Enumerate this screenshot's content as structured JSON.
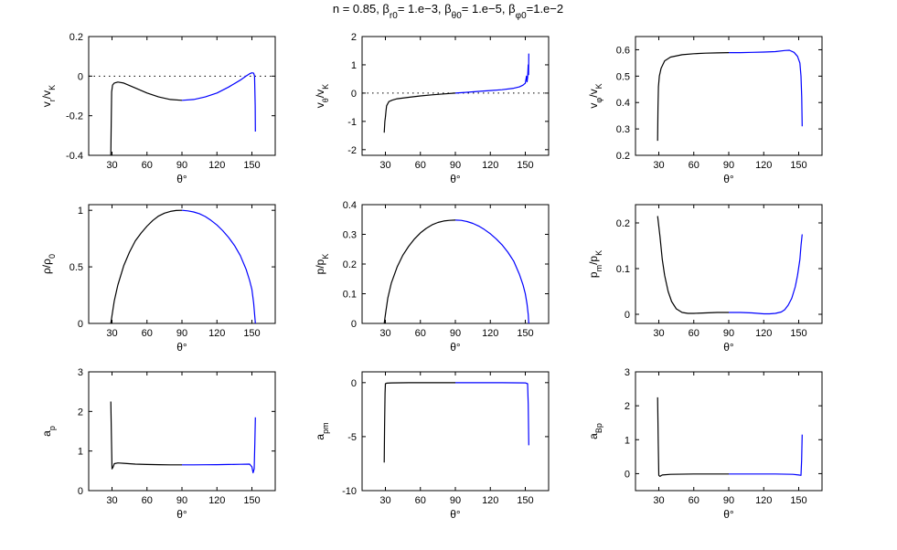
{
  "figure": {
    "title": "n = 0.85, β_r0= 1.e−3, β_θ0= 1.e−5, β_φ0=1.e−2",
    "colors": {
      "left_half": "#000000",
      "right_half": "#0000ff",
      "reference_line": "#000000"
    }
  },
  "chart_data": [
    {
      "type": "line",
      "ylabel": "v_r/v_K",
      "xlabel": "θ°",
      "xlim": [
        10,
        170
      ],
      "xticks": [
        30,
        60,
        90,
        120,
        150
      ],
      "ylim": [
        -0.4,
        0.2
      ],
      "yticks": [
        -0.4,
        -0.2,
        0,
        0.2
      ],
      "reference_line": 0,
      "series": [
        {
          "color": "#000000",
          "x": [
            29,
            29.3,
            29.7,
            30.5,
            32,
            35,
            40,
            50,
            60,
            70,
            80,
            90
          ],
          "y": [
            -0.4,
            -0.25,
            -0.08,
            -0.045,
            -0.035,
            -0.03,
            -0.035,
            -0.06,
            -0.085,
            -0.105,
            -0.118,
            -0.122
          ]
        },
        {
          "color": "#0000ff",
          "x": [
            90,
            100,
            110,
            120,
            130,
            140,
            145,
            148,
            150,
            151.5,
            152.3,
            152.8,
            153
          ],
          "y": [
            -0.122,
            -0.118,
            -0.105,
            -0.085,
            -0.055,
            -0.02,
            0.0,
            0.012,
            0.017,
            0.015,
            0.0,
            -0.15,
            -0.28
          ]
        }
      ]
    },
    {
      "type": "line",
      "ylabel": "v_θ/v_K",
      "xlabel": "θ°",
      "xlim": [
        10,
        170
      ],
      "xticks": [
        30,
        60,
        90,
        120,
        150
      ],
      "ylim": [
        -2.2,
        2
      ],
      "yticks": [
        -2,
        -1,
        0,
        1,
        2
      ],
      "reference_line": 0,
      "series": [
        {
          "color": "#000000",
          "x": [
            29,
            29.5,
            30,
            30.5,
            31,
            33,
            36,
            40,
            50,
            60,
            70,
            80,
            90
          ],
          "y": [
            -1.4,
            -1.0,
            -0.85,
            -0.65,
            -0.45,
            -0.3,
            -0.25,
            -0.2,
            -0.15,
            -0.1,
            -0.06,
            -0.03,
            0.0
          ]
        },
        {
          "color": "#0000ff",
          "x": [
            90,
            100,
            110,
            120,
            130,
            140,
            145,
            148,
            150,
            151,
            151.5,
            152,
            152.5,
            152.8,
            153
          ],
          "y": [
            0.0,
            0.03,
            0.06,
            0.09,
            0.12,
            0.17,
            0.22,
            0.28,
            0.35,
            0.6,
            0.4,
            0.55,
            1.0,
            0.65,
            1.4
          ]
        }
      ]
    },
    {
      "type": "line",
      "ylabel": "v_φ/v_K",
      "xlabel": "θ°",
      "xlim": [
        10,
        170
      ],
      "xticks": [
        30,
        60,
        90,
        120,
        150
      ],
      "ylim": [
        0.2,
        0.65
      ],
      "yticks": [
        0.2,
        0.3,
        0.4,
        0.5,
        0.6
      ],
      "series": [
        {
          "color": "#000000",
          "x": [
            29,
            29.3,
            29.7,
            30.5,
            32,
            35,
            40,
            50,
            60,
            70,
            80,
            90
          ],
          "y": [
            0.255,
            0.38,
            0.46,
            0.5,
            0.53,
            0.558,
            0.572,
            0.581,
            0.585,
            0.587,
            0.588,
            0.589
          ]
        },
        {
          "color": "#0000ff",
          "x": [
            90,
            100,
            110,
            120,
            130,
            138,
            142,
            146,
            149,
            151,
            152,
            152.6,
            153
          ],
          "y": [
            0.589,
            0.589,
            0.59,
            0.591,
            0.593,
            0.597,
            0.598,
            0.59,
            0.575,
            0.55,
            0.5,
            0.42,
            0.31
          ]
        }
      ]
    },
    {
      "type": "line",
      "ylabel": "ρ/ρ_0",
      "xlabel": "θ°",
      "xlim": [
        10,
        170
      ],
      "xticks": [
        30,
        60,
        90,
        120,
        150
      ],
      "ylim": [
        0,
        1.05
      ],
      "yticks": [
        0,
        0.5,
        1
      ],
      "series": [
        {
          "color": "#000000",
          "x": [
            29,
            30,
            32,
            35,
            40,
            45,
            50,
            55,
            60,
            65,
            70,
            75,
            80,
            85,
            90
          ],
          "y": [
            0,
            0.07,
            0.2,
            0.34,
            0.51,
            0.63,
            0.73,
            0.8,
            0.86,
            0.91,
            0.95,
            0.975,
            0.99,
            0.998,
            1.0
          ]
        },
        {
          "color": "#0000ff",
          "x": [
            90,
            95,
            100,
            105,
            110,
            115,
            120,
            125,
            130,
            135,
            140,
            145,
            148,
            150,
            151.5,
            153
          ],
          "y": [
            1.0,
            0.995,
            0.985,
            0.97,
            0.945,
            0.91,
            0.87,
            0.82,
            0.76,
            0.69,
            0.6,
            0.48,
            0.38,
            0.3,
            0.18,
            0
          ]
        }
      ]
    },
    {
      "type": "line",
      "ylabel": "p/p_K",
      "xlabel": "θ°",
      "xlim": [
        10,
        170
      ],
      "xticks": [
        30,
        60,
        90,
        120,
        150
      ],
      "ylim": [
        0,
        0.4
      ],
      "yticks": [
        0,
        0.1,
        0.2,
        0.3,
        0.4
      ],
      "series": [
        {
          "color": "#000000",
          "x": [
            29,
            30,
            32,
            35,
            40,
            45,
            50,
            55,
            60,
            65,
            70,
            75,
            80,
            85,
            90
          ],
          "y": [
            0,
            0.03,
            0.085,
            0.135,
            0.19,
            0.23,
            0.26,
            0.285,
            0.305,
            0.32,
            0.332,
            0.34,
            0.345,
            0.347,
            0.348
          ]
        },
        {
          "color": "#0000ff",
          "x": [
            90,
            95,
            100,
            105,
            110,
            115,
            120,
            125,
            130,
            135,
            140,
            145,
            148,
            150,
            151.5,
            152.5,
            153
          ],
          "y": [
            0.348,
            0.347,
            0.343,
            0.337,
            0.328,
            0.316,
            0.302,
            0.285,
            0.265,
            0.24,
            0.21,
            0.165,
            0.13,
            0.1,
            0.065,
            0.03,
            0
          ]
        }
      ]
    },
    {
      "type": "line",
      "ylabel": "p_m/p_K",
      "xlabel": "θ°",
      "xlim": [
        10,
        170
      ],
      "xticks": [
        30,
        60,
        90,
        120,
        150
      ],
      "ylim": [
        -0.02,
        0.24
      ],
      "yticks": [
        0,
        0.1,
        0.2
      ],
      "series": [
        {
          "color": "#000000",
          "x": [
            29,
            31,
            33,
            35,
            38,
            41,
            45,
            50,
            55,
            60,
            70,
            80,
            90
          ],
          "y": [
            0.215,
            0.17,
            0.12,
            0.085,
            0.05,
            0.028,
            0.012,
            0.004,
            0.002,
            0.002,
            0.003,
            0.004,
            0.004
          ]
        },
        {
          "color": "#0000ff",
          "x": [
            90,
            100,
            110,
            120,
            125,
            130,
            135,
            138,
            141,
            144,
            147,
            149,
            151,
            152,
            153
          ],
          "y": [
            0.004,
            0.004,
            0.003,
            0.001,
            0.001,
            0.002,
            0.005,
            0.01,
            0.02,
            0.035,
            0.06,
            0.085,
            0.12,
            0.15,
            0.175
          ]
        }
      ]
    },
    {
      "type": "line",
      "ylabel": "a_p",
      "xlabel": "θ°",
      "xlim": [
        10,
        170
      ],
      "xticks": [
        30,
        60,
        90,
        120,
        150
      ],
      "ylim": [
        0,
        3
      ],
      "yticks": [
        0,
        1,
        2,
        3
      ],
      "series": [
        {
          "color": "#000000",
          "x": [
            29,
            29.5,
            30,
            31,
            32,
            35,
            40,
            50,
            60,
            70,
            80,
            90
          ],
          "y": [
            2.25,
            1.3,
            0.55,
            0.6,
            0.68,
            0.7,
            0.69,
            0.67,
            0.66,
            0.655,
            0.65,
            0.65
          ]
        },
        {
          "color": "#0000ff",
          "x": [
            90,
            100,
            110,
            120,
            130,
            140,
            148,
            150,
            151,
            152,
            152.5,
            153
          ],
          "y": [
            0.65,
            0.65,
            0.652,
            0.655,
            0.66,
            0.665,
            0.67,
            0.6,
            0.45,
            0.55,
            1.2,
            1.85
          ]
        }
      ]
    },
    {
      "type": "line",
      "ylabel": "a_pm",
      "xlabel": "θ°",
      "xlim": [
        10,
        170
      ],
      "xticks": [
        30,
        60,
        90,
        120,
        150
      ],
      "ylim": [
        -10,
        1
      ],
      "yticks": [
        -10,
        -5,
        0
      ],
      "series": [
        {
          "color": "#000000",
          "x": [
            29,
            29.3,
            29.7,
            30,
            31,
            35,
            50,
            70,
            90
          ],
          "y": [
            -7.4,
            -4.0,
            -1.0,
            -0.1,
            -0.05,
            -0.02,
            -0.01,
            -0.01,
            -0.01
          ]
        },
        {
          "color": "#0000ff",
          "x": [
            90,
            110,
            130,
            150,
            152,
            152.5,
            153
          ],
          "y": [
            -0.01,
            -0.01,
            -0.01,
            -0.02,
            -0.1,
            -2.0,
            -5.8
          ]
        }
      ]
    },
    {
      "type": "line",
      "ylabel": "a_Bp",
      "xlabel": "θ°",
      "xlim": [
        10,
        170
      ],
      "xticks": [
        30,
        60,
        90,
        120,
        150
      ],
      "ylim": [
        -0.5,
        3
      ],
      "yticks": [
        0,
        1,
        2,
        3
      ],
      "series": [
        {
          "color": "#000000",
          "x": [
            29,
            29.5,
            30,
            31,
            33,
            40,
            60,
            80,
            90
          ],
          "y": [
            2.25,
            0.9,
            -0.05,
            -0.08,
            -0.04,
            -0.02,
            -0.01,
            -0.01,
            -0.01
          ]
        },
        {
          "color": "#0000ff",
          "x": [
            90,
            110,
            130,
            145,
            150,
            152,
            152.5,
            153
          ],
          "y": [
            -0.01,
            -0.01,
            -0.01,
            -0.02,
            -0.04,
            -0.05,
            0.4,
            1.15
          ]
        }
      ]
    }
  ]
}
